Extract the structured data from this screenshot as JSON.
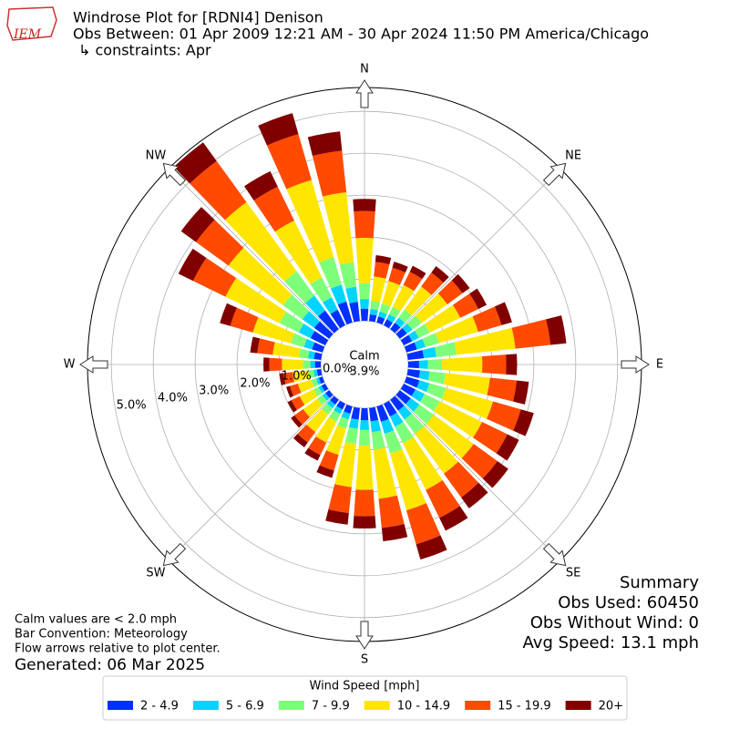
{
  "header": {
    "title": "Windrose Plot for [RDNI4] Denison",
    "subtitle": "Obs Between: 01 Apr 2009 12:21 AM - 30 Apr 2024 11:50 PM America/Chicago",
    "constraints": "↳ constraints: Apr",
    "logo_text": "IEM"
  },
  "chart_data": {
    "type": "windrose",
    "x": [
      0,
      10,
      20,
      30,
      40,
      50,
      60,
      70,
      80,
      90,
      100,
      110,
      120,
      130,
      140,
      150,
      160,
      170,
      180,
      190,
      200,
      210,
      220,
      230,
      240,
      250,
      260,
      270,
      280,
      290,
      300,
      310,
      320,
      330,
      340,
      350
    ],
    "direction_labels": [
      "N",
      "NE",
      "E",
      "SE",
      "S",
      "SW",
      "W",
      "NW"
    ],
    "rlim": [
      0,
      5.57
    ],
    "rticks": [
      {
        "value": 0,
        "label": "0.0%"
      },
      {
        "value": 1,
        "label": "1.0%"
      },
      {
        "value": 2,
        "label": "2.0%"
      },
      {
        "value": 3,
        "label": "3.0%"
      },
      {
        "value": 4,
        "label": "4.0%"
      },
      {
        "value": 5,
        "label": "5.0%"
      }
    ],
    "grid": true,
    "calm": {
      "label": "Calm",
      "value": 3.9,
      "value_label": "3.9%"
    },
    "legend_title": "Wind Speed [mph]",
    "legend_position": "bottom",
    "series": [
      {
        "name": "2 - 4.9",
        "color": "#0030ff",
        "values": [
          0.29,
          0.16,
          0.15,
          0.16,
          0.19,
          0.21,
          0.22,
          0.26,
          0.38,
          0.26,
          0.29,
          0.32,
          0.31,
          0.32,
          0.32,
          0.34,
          0.38,
          0.32,
          0.29,
          0.28,
          0.18,
          0.15,
          0.14,
          0.11,
          0.1,
          0.09,
          0.1,
          0.14,
          0.17,
          0.26,
          0.39,
          0.44,
          0.55,
          0.41,
          0.52,
          0.46
        ]
      },
      {
        "name": "5 - 6.9",
        "color": "#00d4ff",
        "values": [
          0.23,
          0.13,
          0.12,
          0.13,
          0.15,
          0.16,
          0.18,
          0.21,
          0.3,
          0.21,
          0.23,
          0.25,
          0.24,
          0.26,
          0.26,
          0.27,
          0.3,
          0.26,
          0.23,
          0.22,
          0.14,
          0.12,
          0.11,
          0.09,
          0.08,
          0.07,
          0.08,
          0.11,
          0.14,
          0.2,
          0.31,
          0.35,
          0.44,
          0.33,
          0.42,
          0.36
        ]
      },
      {
        "name": "7 - 9.9",
        "color": "#7dff7a",
        "values": [
          0.38,
          0.2,
          0.2,
          0.2,
          0.24,
          0.27,
          0.29,
          0.34,
          0.49,
          0.34,
          0.38,
          0.41,
          0.4,
          0.42,
          0.42,
          0.44,
          0.49,
          0.42,
          0.37,
          0.36,
          0.23,
          0.2,
          0.18,
          0.15,
          0.13,
          0.12,
          0.13,
          0.18,
          0.22,
          0.33,
          0.51,
          0.57,
          0.72,
          0.53,
          0.68,
          0.59
        ]
      },
      {
        "name": "10 - 14.9",
        "color": "#ffe600",
        "values": [
          1.08,
          0.58,
          0.56,
          0.58,
          0.68,
          0.76,
          0.81,
          0.97,
          1.41,
          0.96,
          1.07,
          1.17,
          1.13,
          1.18,
          1.18,
          1.24,
          1.41,
          1.18,
          1.06,
          1.04,
          0.65,
          0.56,
          0.52,
          0.42,
          0.37,
          0.33,
          0.37,
          0.5,
          0.63,
          0.94,
          1.44,
          1.61,
          2.04,
          1.51,
          1.92,
          1.68
        ]
      },
      {
        "name": "15 - 19.9",
        "color": "#ff4a00",
        "values": [
          0.64,
          0.35,
          0.33,
          0.35,
          0.41,
          0.45,
          0.48,
          0.58,
          0.84,
          0.57,
          0.64,
          0.69,
          0.67,
          0.7,
          0.7,
          0.74,
          0.84,
          0.7,
          0.63,
          0.62,
          0.39,
          0.33,
          0.31,
          0.25,
          0.22,
          0.2,
          0.22,
          0.3,
          0.37,
          0.56,
          0.86,
          0.96,
          1.21,
          0.9,
          1.14,
          1.0
        ]
      },
      {
        "name": "20+",
        "color": "#800000",
        "values": [
          0.29,
          0.16,
          0.15,
          0.16,
          0.19,
          0.21,
          0.22,
          0.26,
          0.38,
          0.26,
          0.29,
          0.32,
          0.31,
          0.32,
          0.32,
          0.34,
          0.38,
          0.32,
          0.29,
          0.28,
          0.18,
          0.15,
          0.14,
          0.11,
          0.1,
          0.09,
          0.1,
          0.14,
          0.17,
          0.26,
          0.39,
          0.44,
          0.55,
          0.41,
          0.52,
          0.46
        ]
      }
    ]
  },
  "notes": [
    "Calm values are < 2.0 mph",
    "Bar Convention: Meteorology",
    "Flow arrows relative to plot center."
  ],
  "generated": "Generated: 06 Mar 2025",
  "summary": [
    "Summary",
    "Obs Used: 60450",
    "Obs Without Wind: 0",
    "Avg Speed: 13.1 mph"
  ]
}
